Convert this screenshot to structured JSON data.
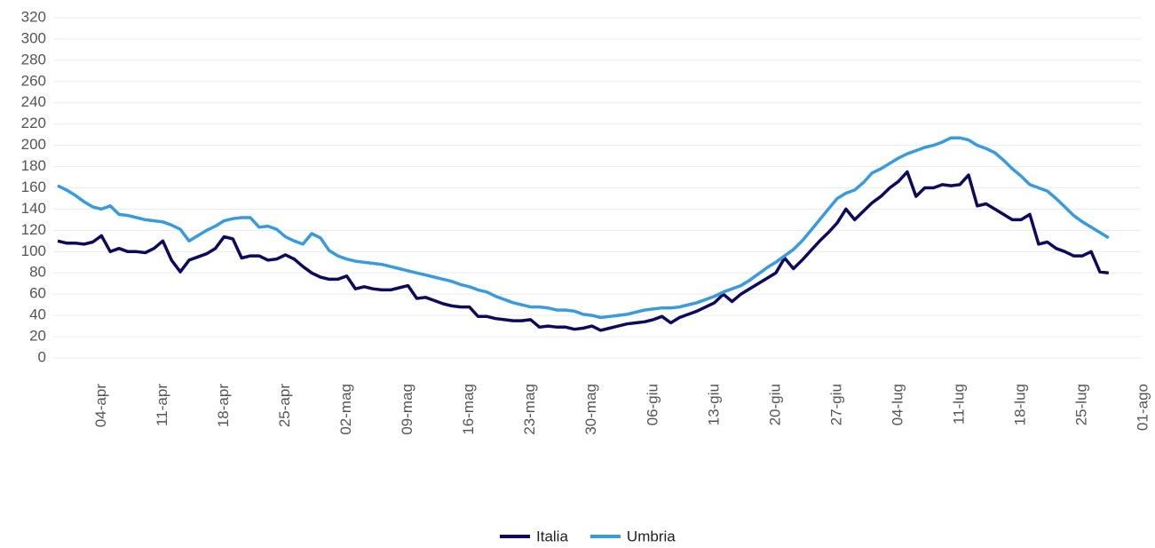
{
  "chart_data": {
    "type": "line",
    "categories": [
      null,
      null,
      null,
      null,
      null,
      "04-apr",
      null,
      null,
      null,
      null,
      null,
      null,
      "11-apr",
      null,
      null,
      null,
      null,
      null,
      null,
      "18-apr",
      null,
      null,
      null,
      null,
      null,
      null,
      "25-apr",
      null,
      null,
      null,
      null,
      null,
      null,
      "02-mag",
      null,
      null,
      null,
      null,
      null,
      null,
      "09-mag",
      null,
      null,
      null,
      null,
      null,
      null,
      "16-mag",
      null,
      null,
      null,
      null,
      null,
      null,
      "23-mag",
      null,
      null,
      null,
      null,
      null,
      null,
      "30-mag",
      null,
      null,
      null,
      null,
      null,
      null,
      "06-giu",
      null,
      null,
      null,
      null,
      null,
      null,
      "13-giu",
      null,
      null,
      null,
      null,
      null,
      null,
      "20-giu",
      null,
      null,
      null,
      null,
      null,
      null,
      "27-giu",
      null,
      null,
      null,
      null,
      null,
      null,
      "04-lug",
      null,
      null,
      null,
      null,
      null,
      null,
      "11-lug",
      null,
      null,
      null,
      null,
      null,
      null,
      "18-lug",
      null,
      null,
      null,
      null,
      null,
      null,
      "25-lug",
      null,
      null,
      null,
      null,
      null,
      null,
      "01-ago"
    ],
    "series": [
      {
        "name": "Italia",
        "color": "#0d0a5e",
        "values": [
          110,
          108,
          108,
          107,
          109,
          115,
          100,
          103,
          100,
          100,
          99,
          103,
          110,
          92,
          81,
          92,
          95,
          98,
          103,
          114,
          112,
          94,
          96,
          96,
          92,
          93,
          97,
          93,
          86,
          80,
          76,
          74,
          74,
          77,
          65,
          67,
          65,
          64,
          64,
          66,
          68,
          56,
          57,
          54,
          51,
          49,
          48,
          48,
          39,
          39,
          37,
          36,
          35,
          35,
          36,
          29,
          30,
          29,
          29,
          27,
          28,
          30,
          26,
          28,
          30,
          32,
          33,
          34,
          36,
          39,
          33,
          38,
          41,
          44,
          48,
          52,
          60,
          53,
          60,
          65,
          70,
          75,
          80,
          94,
          84,
          92,
          101,
          110,
          118,
          127,
          140,
          130,
          138,
          146,
          152,
          160,
          166,
          175,
          152,
          160,
          160,
          163,
          162,
          163,
          172,
          143,
          145,
          140,
          135,
          130,
          130,
          135,
          107,
          109,
          103,
          100,
          96,
          96,
          100,
          81,
          80,
          null,
          null,
          null,
          null
        ]
      },
      {
        "name": "Umbria",
        "color": "#3a9ade",
        "values": [
          162,
          158,
          153,
          147,
          142,
          140,
          143,
          135,
          134,
          132,
          130,
          129,
          128,
          125,
          121,
          110,
          115,
          120,
          124,
          129,
          131,
          132,
          132,
          123,
          124,
          121,
          114,
          110,
          107,
          117,
          113,
          101,
          96,
          93,
          91,
          90,
          89,
          88,
          86,
          84,
          82,
          80,
          78,
          76,
          74,
          72,
          69,
          67,
          64,
          62,
          58,
          55,
          52,
          50,
          48,
          48,
          47,
          45,
          45,
          44,
          41,
          40,
          38,
          39,
          40,
          41,
          43,
          45,
          46,
          47,
          47,
          48,
          50,
          52,
          55,
          58,
          62,
          65,
          68,
          73,
          79,
          85,
          90,
          96,
          102,
          110,
          120,
          130,
          140,
          150,
          155,
          158,
          165,
          174,
          178,
          183,
          188,
          192,
          195,
          198,
          200,
          203,
          207,
          207,
          205,
          200,
          197,
          193,
          186,
          178,
          171,
          163,
          160,
          157,
          150,
          142,
          134,
          128,
          123,
          118,
          113,
          null,
          null,
          null,
          null
        ]
      }
    ],
    "ylim": [
      0,
      320
    ],
    "yticks": [
      0,
      20,
      40,
      60,
      80,
      100,
      120,
      140,
      160,
      180,
      200,
      220,
      240,
      260,
      280,
      300,
      320
    ],
    "grid": true,
    "legend": "bottom"
  }
}
